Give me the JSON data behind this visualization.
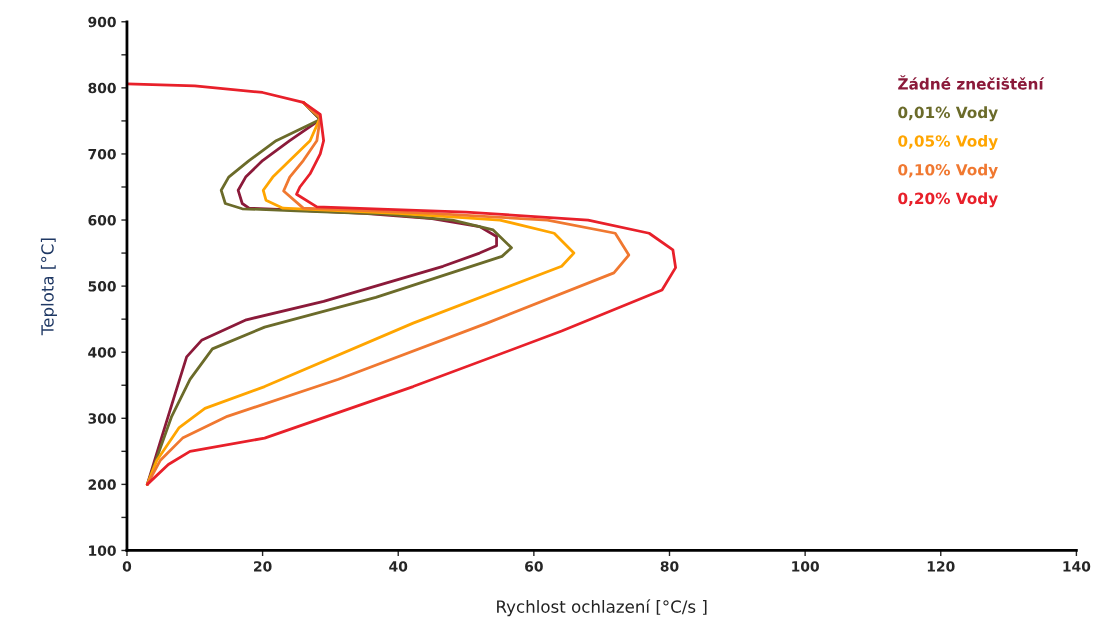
{
  "chart_data": {
    "type": "line",
    "xlabel": "Rychlost ochlazení [°C/s ]",
    "ylabel": "Teplota [°C]",
    "xlim": [
      0,
      140
    ],
    "xticks": [
      0,
      20,
      40,
      60,
      80,
      100,
      120,
      140
    ],
    "ylim": [
      100,
      900
    ],
    "yticks": [
      100,
      200,
      300,
      400,
      500,
      600,
      700,
      800,
      900
    ],
    "grid": false,
    "legend": "top right",
    "marker": "none",
    "line_style": "solid",
    "series": [
      {
        "name": "Žádné znečištění",
        "color": "#8b1a3a",
        "x": [
          26,
          28.5,
          24,
          20,
          17.5,
          16.4,
          17,
          18,
          25,
          35,
          45,
          52,
          54.5,
          54.5,
          52,
          46.6,
          29,
          17.6,
          11,
          8.8,
          7.1,
          4.9,
          3
        ],
        "values": [
          778,
          752,
          720,
          690,
          665,
          645,
          625,
          618,
          615,
          610,
          602,
          590,
          575,
          561,
          550,
          530,
          477,
          449,
          418,
          393,
          337,
          264,
          200
        ]
      },
      {
        "name": "0,01% Vody",
        "color": "#6b6b2a",
        "x": [
          26,
          28.5,
          22,
          18,
          15,
          13.9,
          14.5,
          17,
          25,
          38,
          48,
          54,
          56.7,
          55.3,
          36.7,
          20.3,
          12.6,
          9.3,
          6.6,
          3
        ],
        "values": [
          778,
          752,
          720,
          690,
          665,
          645,
          625,
          617,
          614,
          609,
          600,
          585,
          558,
          545,
          483,
          438,
          405,
          359,
          303,
          200
        ]
      },
      {
        "name": "0,05% Vody",
        "color": "#ffa500",
        "x": [
          26,
          28.5,
          27,
          24,
          21.5,
          20.1,
          20.5,
          23,
          40,
          55,
          63,
          65.9,
          64.1,
          42.2,
          20.3,
          11.5,
          7.7,
          4.4,
          3
        ],
        "values": [
          778,
          755,
          720,
          690,
          665,
          645,
          630,
          618,
          610,
          600,
          580,
          550,
          530,
          444,
          348,
          315,
          286,
          236,
          200
        ]
      },
      {
        "name": "0,10% Vody",
        "color": "#f07830",
        "x": [
          26,
          28.5,
          28,
          26,
          24,
          23.1,
          26,
          45,
          62,
          72,
          74,
          71.8,
          53.1,
          31.2,
          14.8,
          8.2,
          4.9,
          3
        ],
        "values": [
          778,
          755,
          720,
          690,
          665,
          644,
          618,
          610,
          600,
          580,
          547,
          520,
          444,
          359,
          303,
          270,
          236,
          200
        ]
      },
      {
        "name": "0,20% Vody",
        "color": "#e8202a",
        "x": [
          0,
          10,
          20,
          26,
          28.5,
          29,
          28.5,
          27,
          25.5,
          25,
          28,
          50,
          68,
          77,
          80.5,
          80.9,
          78.9,
          64.1,
          42.2,
          20.3,
          9.3,
          6.1,
          3
        ],
        "values": [
          806,
          803,
          793,
          778,
          760,
          720,
          700,
          670,
          650,
          639,
          620,
          612,
          600,
          580,
          555,
          528,
          494,
          432,
          348,
          270,
          250,
          230,
          200
        ]
      }
    ]
  }
}
